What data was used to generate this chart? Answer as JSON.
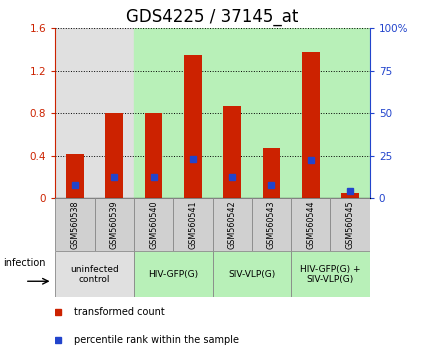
{
  "title": "GDS4225 / 37145_at",
  "samples": [
    "GSM560538",
    "GSM560539",
    "GSM560540",
    "GSM560541",
    "GSM560542",
    "GSM560543",
    "GSM560544",
    "GSM560545"
  ],
  "red_values": [
    0.42,
    0.8,
    0.8,
    1.35,
    0.87,
    0.47,
    1.38,
    0.05
  ],
  "blue_pct": [
    7.5,
    12.5,
    12.5,
    23.0,
    12.5,
    7.5,
    22.5,
    4.5
  ],
  "ylim_left": [
    0,
    1.6
  ],
  "ylim_right": [
    0,
    100
  ],
  "yticks_left": [
    0,
    0.4,
    0.8,
    1.2,
    1.6
  ],
  "ytick_labels_left": [
    "0",
    "0.4",
    "0.8",
    "1.2",
    "1.6"
  ],
  "yticks_right": [
    0,
    25,
    50,
    75,
    100
  ],
  "ytick_labels_right": [
    "0",
    "25",
    "50",
    "75",
    "100%"
  ],
  "groups": [
    {
      "label": "uninfected\ncontrol",
      "start": 0,
      "end": 2,
      "color": "#e0e0e0"
    },
    {
      "label": "HIV-GFP(G)",
      "start": 2,
      "end": 4,
      "color": "#b8f0b8"
    },
    {
      "label": "SIV-VLP(G)",
      "start": 4,
      "end": 6,
      "color": "#b8f0b8"
    },
    {
      "label": "HIV-GFP(G) +\nSIV-VLP(G)",
      "start": 6,
      "end": 8,
      "color": "#b8f0b8"
    }
  ],
  "sample_bg_color": "#d0d0d0",
  "bar_color": "#cc2200",
  "blue_color": "#2244cc",
  "title_fontsize": 12,
  "infection_label": "infection",
  "legend_red": "transformed count",
  "legend_blue": "percentile rank within the sample"
}
